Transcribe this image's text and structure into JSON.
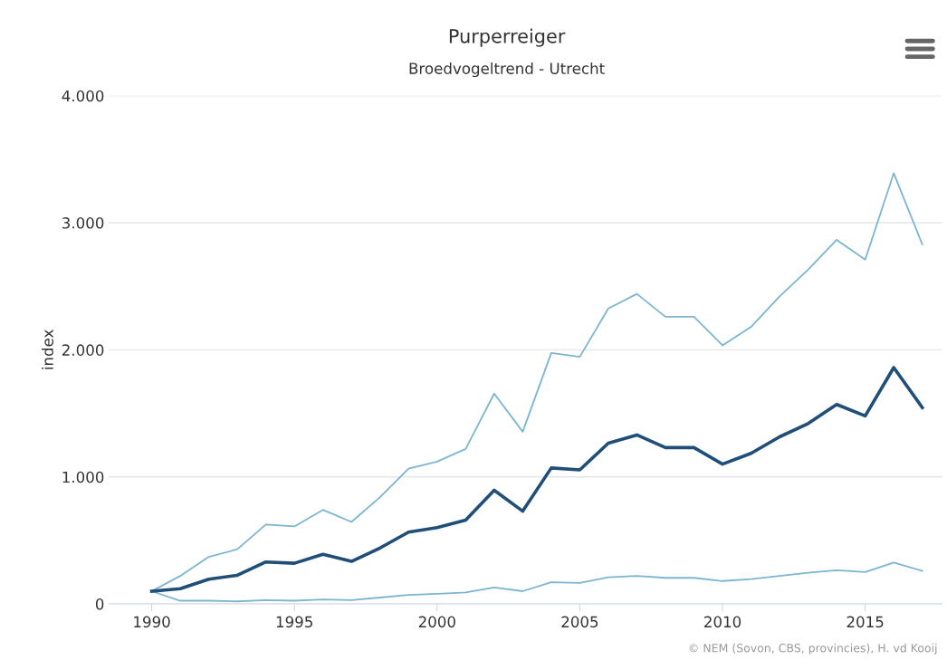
{
  "chart_data": {
    "type": "line",
    "title": "Purperreiger",
    "subtitle": "Broedvogeltrend - Utrecht",
    "ylabel": "index",
    "x": [
      1990,
      1991,
      1992,
      1993,
      1994,
      1995,
      1996,
      1997,
      1998,
      1999,
      2000,
      2001,
      2002,
      2003,
      2004,
      2005,
      2006,
      2007,
      2008,
      2009,
      2010,
      2011,
      2012,
      2013,
      2014,
      2015,
      2016,
      2017
    ],
    "series": [
      {
        "color": "#7cb5d2",
        "values": [
          100,
          220,
          370,
          430,
          625,
          610,
          740,
          645,
          840,
          1065,
          1120,
          1220,
          1655,
          1355,
          1975,
          1945,
          2325,
          2440,
          2260,
          2260,
          2035,
          2180,
          2420,
          2630,
          2865,
          2710,
          3390,
          2830
        ]
      },
      {
        "color": "#1f4e79",
        "values": [
          100,
          120,
          195,
          225,
          330,
          320,
          390,
          335,
          440,
          565,
          600,
          660,
          895,
          730,
          1070,
          1055,
          1265,
          1330,
          1230,
          1230,
          1100,
          1185,
          1315,
          1420,
          1570,
          1480,
          1860,
          1545
        ]
      },
      {
        "color": "#7cb5d2",
        "values": [
          100,
          25,
          25,
          20,
          30,
          25,
          35,
          30,
          50,
          70,
          80,
          90,
          130,
          100,
          170,
          165,
          210,
          220,
          205,
          205,
          180,
          195,
          220,
          245,
          265,
          250,
          325,
          260
        ]
      }
    ],
    "xlim": [
      1988.5,
      2017.7
    ],
    "xticks": [
      1990,
      1995,
      2000,
      2005,
      2010,
      2015
    ],
    "ylim": [
      0,
      4000
    ],
    "yticks": [
      0,
      {
        "value": 1000,
        "label": "1.000"
      },
      {
        "value": 2000,
        "label": "2.000"
      },
      {
        "value": 3000,
        "label": "3.000"
      },
      {
        "value": 4000,
        "label": "4.000"
      }
    ],
    "grid": "y",
    "legend": false,
    "marker": "none",
    "line_style": "solid",
    "annotations": [
      "© NEM (Sovon, CBS, provincies), H. vd Kooij"
    ]
  }
}
